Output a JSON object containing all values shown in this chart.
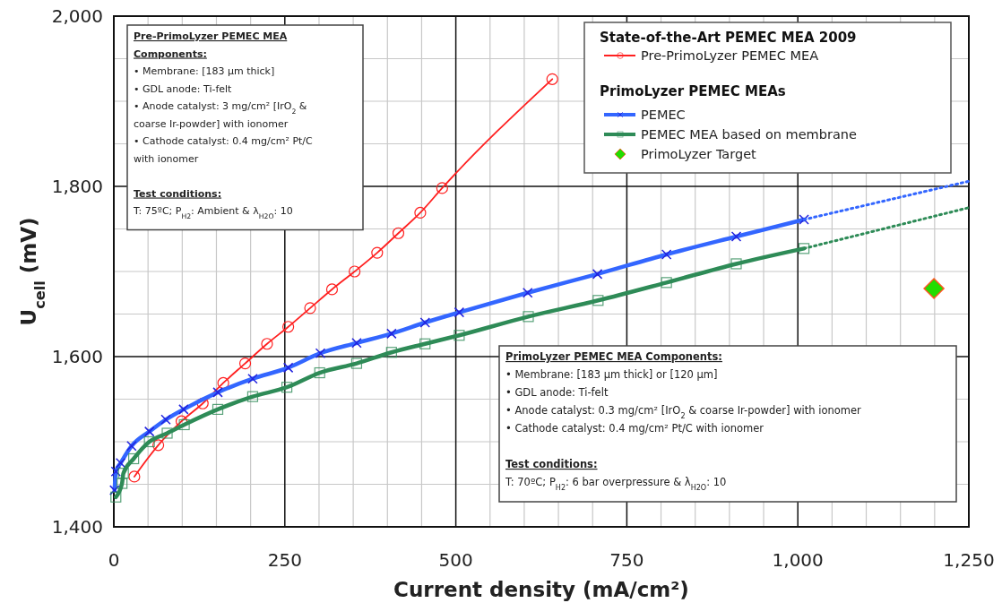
{
  "chart_data": {
    "type": "line",
    "xlabel": "Current density (mA/cm²)",
    "ylabel": "U$_{cell}$ (mV)",
    "legend_title": "State-of-the-Art PEMEC MEA 2009",
    "legend": "top right",
    "grid": true,
    "xlim": [
      0,
      1250
    ],
    "xticks": [
      0,
      250,
      500,
      750,
      {
        "value": 1000,
        "label": "1,000"
      },
      {
        "value": 1250,
        "label": "1,250"
      }
    ],
    "ylim": [
      1400,
      2000
    ],
    "yticks": [
      {
        "value": 1400,
        "label": "1,400"
      },
      {
        "value": 1600,
        "label": "1,600"
      },
      {
        "value": 1800,
        "label": "1,800"
      },
      {
        "value": 2000,
        "label": "2,000"
      }
    ],
    "series": [
      {
        "name": "Pre-PrimoLyzer PEMEC MEA",
        "color": "#ff2020",
        "marker": "circle",
        "x": [
          30,
          65,
          99,
          130,
          160,
          192,
          224,
          255,
          287,
          319,
          352,
          385,
          416,
          448,
          480,
          641
        ],
        "values": [
          1459,
          1496,
          1524,
          1545,
          1569,
          1592,
          1615,
          1635,
          1657,
          1679,
          1700,
          1722,
          1745,
          1769,
          1798,
          1926
        ]
      },
      {
        "name": "PEMEC",
        "color": "#3366ff",
        "marker": "cross",
        "x": [
          1,
          3,
          10,
          26,
          52,
          76,
          102,
          152,
          203,
          255,
          302,
          355,
          406,
          455,
          505,
          605,
          707,
          808,
          910,
          1009
        ],
        "values": [
          1443,
          1465,
          1475,
          1495,
          1512,
          1526,
          1538,
          1558,
          1574,
          1587,
          1604,
          1616,
          1627,
          1640,
          1652,
          1675,
          1697,
          1720,
          1741,
          1761
        ]
      },
      {
        "name": "PEMEC MEA based on membrane",
        "color": "#2e8b57",
        "marker": "square",
        "x": [
          3,
          12,
          14,
          29,
          52,
          78,
          103,
          152,
          203,
          253,
          301,
          355,
          406,
          455,
          505,
          606,
          708,
          808,
          910,
          1009
        ],
        "values": [
          1435,
          1451,
          1463,
          1480,
          1500,
          1510,
          1520,
          1538,
          1553,
          1564,
          1581,
          1592,
          1605,
          1615,
          1625,
          1647,
          1666,
          1687,
          1709,
          1727
        ]
      },
      {
        "color": "#3366ff",
        "marker": "none",
        "line_style": "dotted",
        "x": [
          1009,
          1250
        ],
        "values": [
          1761,
          1806
        ]
      },
      {
        "color": "#2e8b57",
        "marker": "none",
        "line_style": "dotted",
        "x": [
          1009,
          1250
        ],
        "values": [
          1727,
          1775
        ]
      },
      {
        "name": "PrimoLyzer Target",
        "type": "scatter",
        "color": "#22dd00",
        "marker": "diamond",
        "x": [
          1199
        ],
        "values": [
          1680
        ]
      }
    ],
    "annotations": [
      "PrimoLyzer PEMEC MEAs",
      "Pre-PrimoLyzer PEMEC MEA\nComponents:\n• Membrane: [183 µm thick]\n• GDL anode: Ti-felt\n• Anode catalyst: 3 mg/cm² [IrO$_{2}$ &\n   coarse Ir-powder] with ionomer\n• Cathode catalyst: 0.4 mg/cm² Pt/C\n   with ionomer\n\nTest conditions:\nT: 75ºC; P$_{H2}$: Ambient & λ$_{H2O}$: 10",
      "PrimoLyzer PEMEC MEA Components:\n• Membrane: [183 µm thick] or [120 µm]\n• GDL anode: Ti-felt\n• Anode catalyst: 0.3 mg/cm² [IrO$_{2}$ & coarse Ir-powder] with ionomer\n• Cathode catalyst: 0.4 mg/cm² Pt/C with ionomer\n\nTest conditions:\nT: 70ºC; P$_{H2}$: 6 bar overpressure & λ$_{H2O}$: 10"
    ]
  }
}
